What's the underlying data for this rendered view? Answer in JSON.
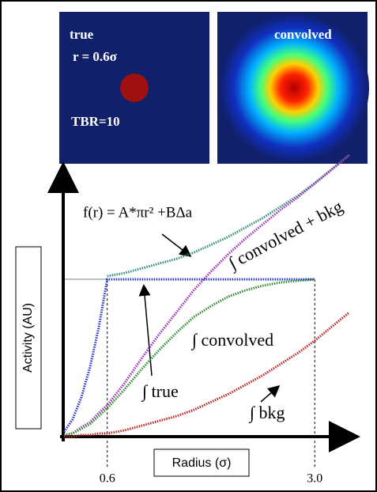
{
  "chart_data": {
    "type": "line",
    "annotations": [
      "true",
      "r = 0.6σ",
      "TBR=10",
      "convolved"
    ],
    "xlabel": "Radius (σ)",
    "ylabel": "Activity (AU)",
    "x": [
      0.1,
      0.2,
      0.3,
      0.4,
      0.5,
      0.6,
      0.8,
      1.0,
      1.2,
      1.4,
      1.6,
      1.8,
      2.0,
      2.2,
      2.4,
      2.6,
      2.8,
      3.0,
      3.2,
      3.4
    ],
    "xlim": [
      0.1,
      3.4
    ],
    "ylim": [
      0,
      1.8
    ],
    "xticks": [
      0.6,
      {
        "value": 3.0,
        "label": "3.0"
      }
    ],
    "series": [
      {
        "name": "f(r) = A*πr² +BΔa",
        "color": "#2e8b7a",
        "values": [
          null,
          null,
          null,
          null,
          null,
          1.02,
          1.04,
          1.07,
          1.1,
          1.13,
          1.17,
          1.22,
          1.27,
          1.33,
          1.39,
          1.46,
          1.53,
          1.61,
          1.7,
          1.79
        ]
      },
      {
        "name": "∫ convolved + bkg",
        "color": "#9b30b8",
        "values": [
          0.01,
          0.02,
          0.06,
          0.09,
          0.15,
          0.2,
          0.34,
          0.5,
          0.65,
          0.79,
          0.93,
          1.05,
          1.16,
          1.26,
          1.35,
          1.44,
          1.52,
          1.61,
          1.7,
          1.79
        ]
      },
      {
        "name": "∫ true",
        "color": "#2030d0",
        "values": [
          0.03,
          0.11,
          0.25,
          0.44,
          0.69,
          1,
          1,
          1,
          1,
          1,
          1,
          1,
          1,
          1,
          1,
          1,
          1,
          1,
          null,
          null
        ]
      },
      {
        "name": "∫ convolved",
        "color": "#2e8b2e",
        "values": [
          0.01,
          0.02,
          0.05,
          0.08,
          0.13,
          0.18,
          0.3,
          0.43,
          0.55,
          0.66,
          0.76,
          0.83,
          0.89,
          0.93,
          0.96,
          0.98,
          0.99,
          1.0,
          null,
          null
        ]
      },
      {
        "name": "∫ bkg",
        "color": "#c02020",
        "values": [
          0.0,
          0.0,
          0.01,
          0.01,
          0.02,
          0.02,
          0.04,
          0.07,
          0.1,
          0.13,
          0.17,
          0.22,
          0.27,
          0.33,
          0.39,
          0.46,
          0.53,
          0.61,
          0.7,
          0.79
        ]
      }
    ]
  }
}
